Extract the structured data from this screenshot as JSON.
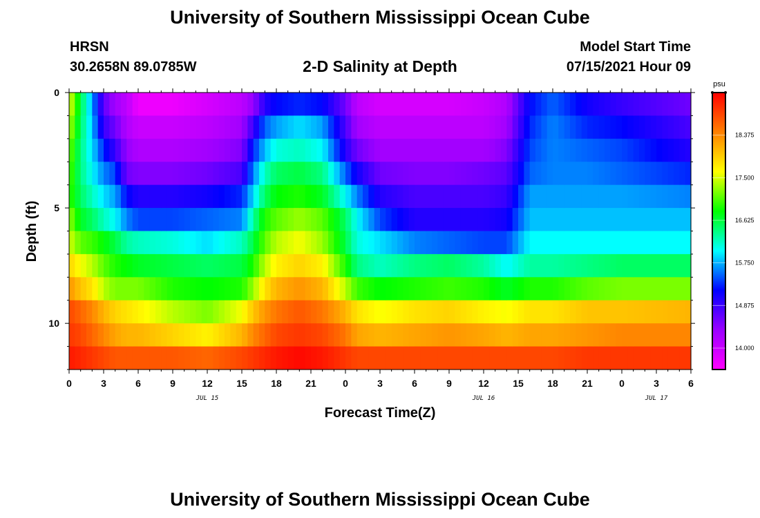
{
  "title": "University of Southern Mississippi Ocean Cube",
  "bottom_title": "University of Southern Mississippi Ocean Cube",
  "station": "HRSN",
  "coords": "30.2658N  89.0785W",
  "subtitle": "2-D Salinity at Depth",
  "model_start_label": "Model Start Time",
  "model_start_value": "07/15/2021 Hour 09",
  "colors": {
    "scale": [
      "#ff00ff",
      "#9a00ff",
      "#0000ff",
      "#00ffff",
      "#00ff00",
      "#ffff00",
      "#ff8000",
      "#ff0000"
    ]
  },
  "chart_data": {
    "type": "heatmap",
    "xlabel": "Forecast Time(Z)",
    "ylabel": "Depth (ft)",
    "x_hours_range": [
      0,
      54
    ],
    "y_range": [
      0,
      12
    ],
    "x_ticks": [
      {
        "hour": 0,
        "label": "0"
      },
      {
        "hour": 3,
        "label": "3"
      },
      {
        "hour": 6,
        "label": "6"
      },
      {
        "hour": 9,
        "label": "9"
      },
      {
        "hour": 12,
        "label": "12"
      },
      {
        "hour": 15,
        "label": "15"
      },
      {
        "hour": 18,
        "label": "18"
      },
      {
        "hour": 21,
        "label": "21"
      },
      {
        "hour": 24,
        "label": "0"
      },
      {
        "hour": 27,
        "label": "3"
      },
      {
        "hour": 30,
        "label": "6"
      },
      {
        "hour": 33,
        "label": "9"
      },
      {
        "hour": 36,
        "label": "12"
      },
      {
        "hour": 39,
        "label": "15"
      },
      {
        "hour": 42,
        "label": "18"
      },
      {
        "hour": 45,
        "label": "21"
      },
      {
        "hour": 48,
        "label": "0"
      },
      {
        "hour": 51,
        "label": "3"
      },
      {
        "hour": 54,
        "label": "6"
      }
    ],
    "date_labels": [
      {
        "hour": 12,
        "label": "JUL 15"
      },
      {
        "hour": 36,
        "label": "JUL 16"
      },
      {
        "hour": 51,
        "label": "JUL 17"
      }
    ],
    "y_ticks": [
      {
        "value": 0,
        "label": "0"
      },
      {
        "value": 5,
        "label": "5"
      },
      {
        "value": 10,
        "label": "10"
      }
    ],
    "colorbar": {
      "unit": "psu",
      "min": 13.56,
      "max": 19.25,
      "ticks": [
        14.0,
        14.875,
        15.75,
        16.625,
        17.5,
        18.375
      ],
      "tick_labels": [
        "14.000",
        "14.875",
        "15.750",
        "16.625",
        "17.500",
        "18.375"
      ]
    },
    "depth_levels": [
      0.5,
      1.5,
      2.5,
      3.5,
      4.5,
      5.5,
      6.5,
      7.5,
      8.5,
      9.5,
      10.5,
      11.5
    ],
    "profiles": [
      {
        "hour": 0,
        "values": [
          17.6,
          17.4,
          17.2,
          17.1,
          17.0,
          17.3,
          17.5,
          17.9,
          18.3,
          18.8,
          18.9,
          19.1
        ]
      },
      {
        "hour": 1,
        "values": [
          16.6,
          16.5,
          16.4,
          16.4,
          16.5,
          16.7,
          17.1,
          17.6,
          18.0,
          18.6,
          18.8,
          19.0
        ]
      },
      {
        "hour": 2,
        "values": [
          15.7,
          15.8,
          15.9,
          16.0,
          16.2,
          16.5,
          17.0,
          17.4,
          17.8,
          18.4,
          18.6,
          18.9
        ]
      },
      {
        "hour": 3,
        "values": [
          14.7,
          14.9,
          15.3,
          15.6,
          15.9,
          16.2,
          16.8,
          17.1,
          17.4,
          18.1,
          18.4,
          18.8
        ]
      },
      {
        "hour": 4,
        "values": [
          14.3,
          14.6,
          14.9,
          15.4,
          15.7,
          16.0,
          16.6,
          16.9,
          17.2,
          17.9,
          18.2,
          18.7
        ]
      },
      {
        "hour": 5,
        "values": [
          14.1,
          14.2,
          14.4,
          14.6,
          15.2,
          15.6,
          16.3,
          16.8,
          17.2,
          17.8,
          18.1,
          18.7
        ]
      },
      {
        "hour": 6,
        "values": [
          13.7,
          14.0,
          14.2,
          14.5,
          15.0,
          15.4,
          16.2,
          16.7,
          17.2,
          17.7,
          18.1,
          18.7
        ]
      },
      {
        "hour": 9,
        "values": [
          13.7,
          14.0,
          14.2,
          14.5,
          15.0,
          15.4,
          16.1,
          16.6,
          16.9,
          17.4,
          17.9,
          18.7
        ]
      },
      {
        "hour": 12,
        "values": [
          13.9,
          14.1,
          14.3,
          14.6,
          15.1,
          15.5,
          15.9,
          16.5,
          16.8,
          17.2,
          17.7,
          18.6
        ]
      },
      {
        "hour": 15,
        "values": [
          14.1,
          14.3,
          14.5,
          14.8,
          15.3,
          15.6,
          16.2,
          16.6,
          16.9,
          17.6,
          18.1,
          18.8
        ]
      },
      {
        "hour": 16,
        "values": [
          14.4,
          14.9,
          15.3,
          15.6,
          15.9,
          16.3,
          16.6,
          16.9,
          17.3,
          18.0,
          18.4,
          18.9
        ]
      },
      {
        "hour": 17,
        "values": [
          15.0,
          15.5,
          15.8,
          16.2,
          16.5,
          16.9,
          17.1,
          17.4,
          17.8,
          18.3,
          18.6,
          19.0
        ]
      },
      {
        "hour": 18,
        "values": [
          15.2,
          15.7,
          16.1,
          16.5,
          16.8,
          17.1,
          17.4,
          17.7,
          18.1,
          18.5,
          18.8,
          19.1
        ]
      },
      {
        "hour": 20,
        "values": [
          15.3,
          15.9,
          16.2,
          16.6,
          16.9,
          17.3,
          17.6,
          17.9,
          18.3,
          18.7,
          18.9,
          19.2
        ]
      },
      {
        "hour": 22,
        "values": [
          15.2,
          15.7,
          16.0,
          16.4,
          16.7,
          17.1,
          17.3,
          17.7,
          18.1,
          18.5,
          18.8,
          19.1
        ]
      },
      {
        "hour": 24,
        "values": [
          14.6,
          14.8,
          15.0,
          15.5,
          16.0,
          16.5,
          16.6,
          16.9,
          17.4,
          18.1,
          18.5,
          18.9
        ]
      },
      {
        "hour": 25,
        "values": [
          14.1,
          14.3,
          14.6,
          15.1,
          15.6,
          16.0,
          16.1,
          16.4,
          17.0,
          17.8,
          18.2,
          18.8
        ]
      },
      {
        "hour": 27,
        "values": [
          13.9,
          14.1,
          14.3,
          14.6,
          15.0,
          15.4,
          15.9,
          16.2,
          16.8,
          17.6,
          18.1,
          18.8
        ]
      },
      {
        "hour": 30,
        "values": [
          13.9,
          14.1,
          14.3,
          14.5,
          14.8,
          15.0,
          15.6,
          16.4,
          16.9,
          17.8,
          18.2,
          18.8
        ]
      },
      {
        "hour": 33,
        "values": [
          13.9,
          14.1,
          14.3,
          14.5,
          14.8,
          15.0,
          15.5,
          16.5,
          17.0,
          17.9,
          18.3,
          18.8
        ]
      },
      {
        "hour": 36,
        "values": [
          14.0,
          14.1,
          14.3,
          14.6,
          14.8,
          15.0,
          15.4,
          16.3,
          16.9,
          17.7,
          18.2,
          18.8
        ]
      },
      {
        "hour": 38,
        "values": [
          14.2,
          14.3,
          14.5,
          14.7,
          14.9,
          15.1,
          15.4,
          16.0,
          16.7,
          17.6,
          18.1,
          18.8
        ]
      },
      {
        "hour": 40,
        "values": [
          15.2,
          15.3,
          15.4,
          15.5,
          15.7,
          15.8,
          16.0,
          16.3,
          16.9,
          17.8,
          18.2,
          18.8
        ]
      },
      {
        "hour": 42,
        "values": [
          15.5,
          15.6,
          15.6,
          15.6,
          15.7,
          15.8,
          16.0,
          16.3,
          16.9,
          17.8,
          18.2,
          18.8
        ]
      },
      {
        "hour": 45,
        "values": [
          15.1,
          15.3,
          15.5,
          15.6,
          15.7,
          15.8,
          16.0,
          16.4,
          17.1,
          18.0,
          18.3,
          18.9
        ]
      },
      {
        "hour": 48,
        "values": [
          14.9,
          15.2,
          15.4,
          15.5,
          15.7,
          15.8,
          16.0,
          16.5,
          17.2,
          18.0,
          18.4,
          18.9
        ]
      },
      {
        "hour": 54,
        "values": [
          14.6,
          14.8,
          15.0,
          15.3,
          15.6,
          15.8,
          16.0,
          16.5,
          17.2,
          18.1,
          18.4,
          18.9
        ]
      }
    ]
  }
}
